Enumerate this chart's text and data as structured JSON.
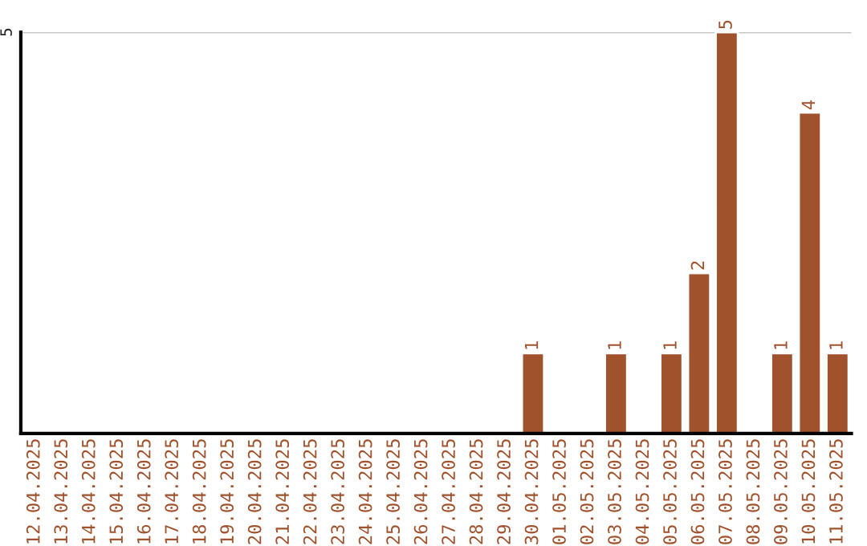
{
  "chart_data": {
    "type": "bar",
    "categories": [
      "12.04.2025",
      "13.04.2025",
      "14.04.2025",
      "15.04.2025",
      "16.04.2025",
      "17.04.2025",
      "18.04.2025",
      "19.04.2025",
      "20.04.2025",
      "21.04.2025",
      "22.04.2025",
      "23.04.2025",
      "24.04.2025",
      "25.04.2025",
      "26.04.2025",
      "27.04.2025",
      "28.04.2025",
      "29.04.2025",
      "30.04.2025",
      "01.05.2025",
      "02.05.2025",
      "03.05.2025",
      "04.05.2025",
      "05.05.2025",
      "06.05.2025",
      "07.05.2025",
      "08.05.2025",
      "09.05.2025",
      "10.05.2025",
      "11.05.2025"
    ],
    "values": [
      null,
      null,
      null,
      null,
      null,
      null,
      null,
      null,
      null,
      null,
      null,
      null,
      null,
      null,
      null,
      null,
      null,
      null,
      1,
      null,
      null,
      1,
      null,
      1,
      2,
      5,
      null,
      1,
      4,
      1
    ],
    "ylim": [
      0,
      5
    ],
    "ref_lines": [
      {
        "axis": "y",
        "value": 5,
        "label": "5",
        "color": "#c8c8c8"
      }
    ],
    "value_labels": [
      null,
      null,
      null,
      null,
      null,
      null,
      null,
      null,
      null,
      null,
      null,
      null,
      null,
      null,
      null,
      null,
      null,
      null,
      "1",
      null,
      null,
      "1",
      null,
      "1",
      "2",
      "5",
      null,
      "1",
      "4",
      "1"
    ],
    "color": "#a0522d",
    "grid": false
  }
}
